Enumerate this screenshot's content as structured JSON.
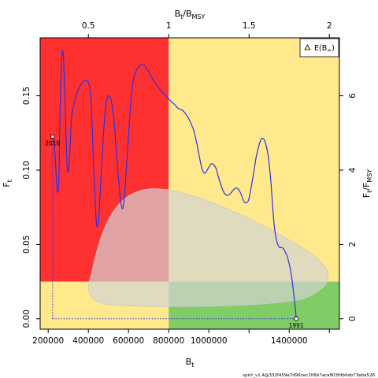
{
  "chart_data": {
    "type": "line",
    "xlabel": "B",
    "xlabel_sub": "t",
    "ylabel_left": "F",
    "ylabel_left_sub": "t",
    "top_axis_label": {
      "main1": "B",
      "sub1": "t",
      "sep": "/B",
      "sub2": "MSY"
    },
    "right_axis_label": {
      "main1": "F",
      "sub1": "t",
      "sep": "/F",
      "sub2": "MSY"
    },
    "xlim": [
      160000,
      1650000
    ],
    "ylim": [
      -0.007,
      0.189
    ],
    "x_ticks": [
      200000,
      400000,
      600000,
      800000,
      1000000,
      1400000
    ],
    "x_tick_labels": [
      "200000",
      "400000",
      "600000",
      "800000",
      "1000000",
      "1400000"
    ],
    "x_minor_ticks": [
      1200000,
      1600000
    ],
    "y_ticks": [
      0.0,
      0.05,
      0.1,
      0.15
    ],
    "y_tick_labels": [
      "0.00",
      "0.05",
      "0.10",
      "0.15"
    ],
    "top_ticks": [
      0.5,
      1,
      1.5,
      2
    ],
    "top_tick_labels": [
      "0.5",
      "1",
      "1.5",
      "2"
    ],
    "right_ticks": [
      0,
      2,
      4,
      6
    ],
    "right_tick_labels": [
      "0",
      "2",
      "4",
      "6"
    ],
    "bmsy": 800000,
    "fmsy": 0.025,
    "zone_colors": {
      "red": "#ff3030",
      "yellow": "#ffe98c",
      "green": "#80cc66",
      "ellipse_fill": "#d3d3d3",
      "line": "#3030e0",
      "start_marker": "#ffffff",
      "end_marker": "#ffffff"
    },
    "series": [
      {
        "x": [
          1435000,
          1432000,
          1428000,
          1423000,
          1418000,
          1410000,
          1400000,
          1390000,
          1380000,
          1372000,
          1362000,
          1352000,
          1343000,
          1335000,
          1326000,
          1318000,
          1310000,
          1302000,
          1295000,
          1288000,
          1280000,
          1272000,
          1262000,
          1250000,
          1236000,
          1224000,
          1210000,
          1198000,
          1186000,
          1174000,
          1160000,
          1148000,
          1136000,
          1124000,
          1112000,
          1102000,
          1092000,
          1080000,
          1068000,
          1058000,
          1046000,
          1036000,
          1022000,
          1010000,
          996000,
          982000,
          968000,
          954000,
          940000,
          926000,
          912000,
          898000,
          884000,
          870000,
          856000,
          843000,
          830000,
          814000,
          800000,
          786000,
          770000,
          752000,
          732000,
          712000,
          692000,
          672000,
          654000,
          644000,
          636000,
          628000,
          620000,
          612000,
          604000,
          596000,
          588000,
          582000,
          576000,
          570000,
          562000,
          554000,
          546000,
          538000,
          530000,
          520000,
          512000,
          504000,
          496000,
          488000,
          480000,
          472000,
          464000,
          456000,
          450000,
          444000,
          438000,
          432000,
          424000,
          416000,
          406000,
          394000,
          380000,
          366000,
          352000,
          338000,
          328000,
          320000,
          314000,
          308000,
          300000,
          294000,
          290000,
          286000,
          282000,
          278000,
          274000,
          270000,
          266000,
          262000,
          258000,
          255000,
          252000,
          248000,
          244000,
          240000,
          236000,
          232000,
          228000,
          225000,
          223000,
          222000
        ],
        "y": [
          0.0,
          0.005,
          0.01,
          0.016,
          0.022,
          0.03,
          0.037,
          0.042,
          0.045,
          0.047,
          0.048,
          0.048,
          0.05,
          0.054,
          0.062,
          0.075,
          0.09,
          0.102,
          0.11,
          0.115,
          0.119,
          0.121,
          0.121,
          0.117,
          0.109,
          0.099,
          0.088,
          0.08,
          0.078,
          0.079,
          0.084,
          0.087,
          0.088,
          0.087,
          0.085,
          0.0835,
          0.083,
          0.084,
          0.087,
          0.091,
          0.096,
          0.101,
          0.104,
          0.104,
          0.101,
          0.098,
          0.1,
          0.108,
          0.118,
          0.126,
          0.131,
          0.135,
          0.138,
          0.14,
          0.141,
          0.142,
          0.144,
          0.146,
          0.148,
          0.15,
          0.152,
          0.155,
          0.159,
          0.163,
          0.168,
          0.171,
          0.17,
          0.168,
          0.166,
          0.163,
          0.157,
          0.147,
          0.132,
          0.115,
          0.099,
          0.086,
          0.078,
          0.074,
          0.078,
          0.088,
          0.101,
          0.115,
          0.13,
          0.142,
          0.148,
          0.15,
          0.149,
          0.144,
          0.133,
          0.117,
          0.098,
          0.079,
          0.066,
          0.062,
          0.068,
          0.084,
          0.11,
          0.14,
          0.156,
          0.16,
          0.16,
          0.158,
          0.155,
          0.15,
          0.144,
          0.139,
          0.13,
          0.112,
          0.099,
          0.103,
          0.118,
          0.138,
          0.156,
          0.17,
          0.179,
          0.18,
          0.172,
          0.156,
          0.132,
          0.108,
          0.091,
          0.085,
          0.088,
          0.096,
          0.106,
          0.114,
          0.119,
          0.121,
          0.122,
          0.1225
        ]
      }
    ],
    "start_label": "1991",
    "end_label": "2016",
    "start_point": [
      1435000,
      0.0
    ],
    "end_point": [
      222000,
      0.1225
    ],
    "ellipse": {
      "bmin": 390000,
      "bmax": 1640000,
      "fmin": 0.0075,
      "fmax": 0.0875
    },
    "legend": {
      "position": "top-right",
      "label_main": "E(B",
      "label_sub": "∞",
      "label_end": ")"
    },
    "grid": false,
    "footer_text": "spict_v1.4@332f459e7d96cec206b7aca803fdb0eb73eba526"
  }
}
